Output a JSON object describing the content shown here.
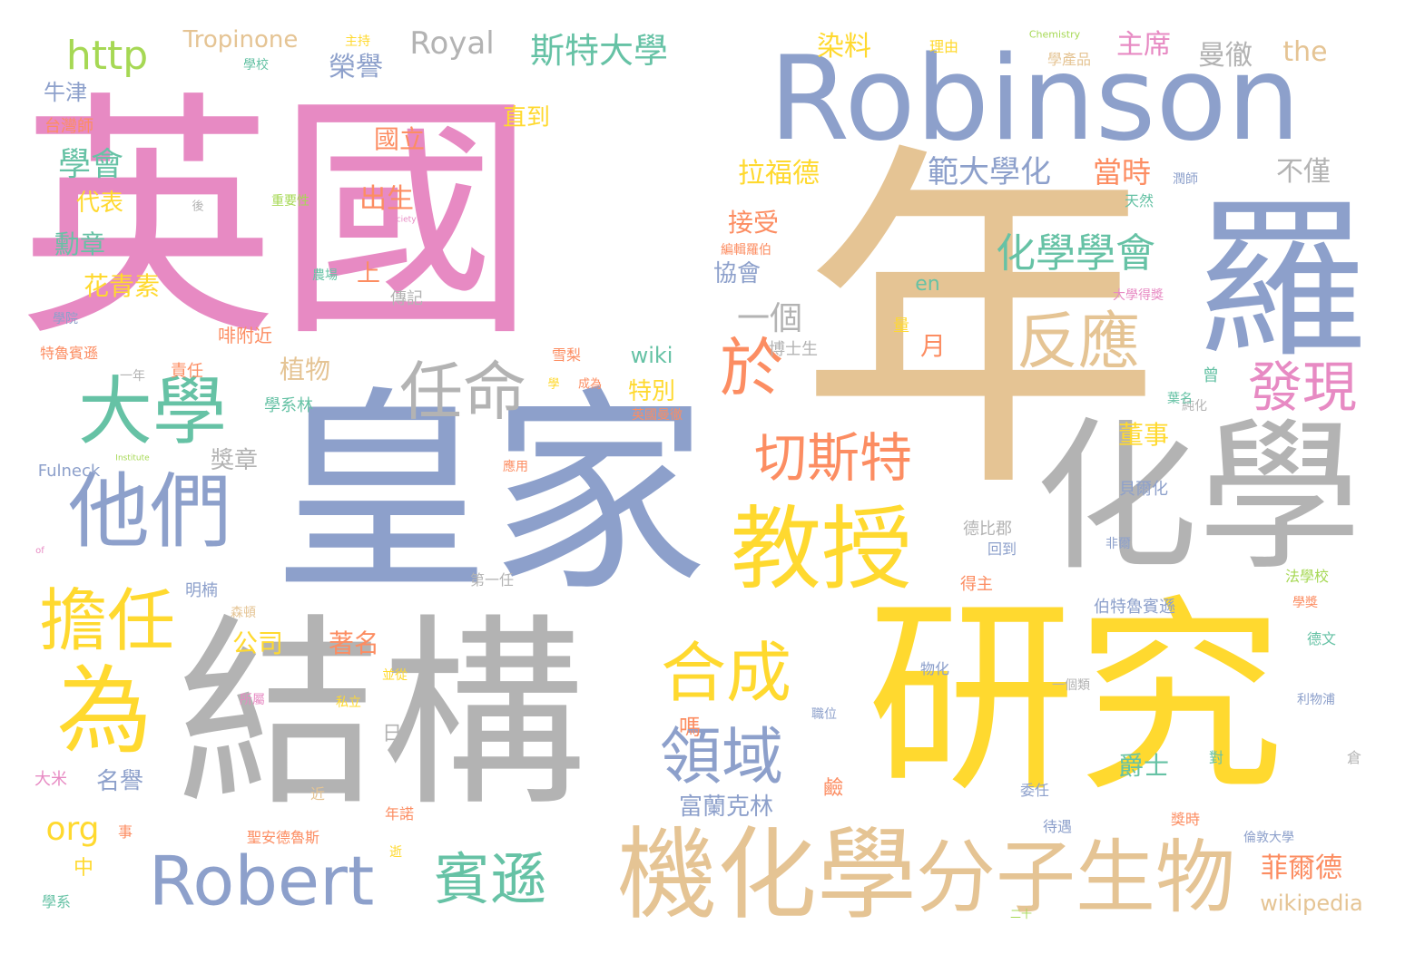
{
  "palette": {
    "pink": "#e78ac3",
    "blue": "#8da0cb",
    "tan": "#e5c494",
    "yellow": "#ffd92f",
    "gray": "#b3b3b3",
    "green": "#66c2a5",
    "orange": "#fc8d62",
    "lime": "#a6d854"
  },
  "words": [
    {
      "text": "英國",
      "color": "#e78ac3"
    },
    {
      "text": "年",
      "color": "#e5c494"
    },
    {
      "text": "皇家",
      "color": "#8da0cb"
    },
    {
      "text": "結構",
      "color": "#b3b3b3"
    },
    {
      "text": "研究",
      "color": "#ffd92f"
    },
    {
      "text": "Robinson",
      "color": "#8da0cb"
    },
    {
      "text": "化學",
      "color": "#b3b3b3"
    },
    {
      "text": "羅",
      "color": "#8da0cb"
    },
    {
      "text": "機化學",
      "color": "#e5c494"
    },
    {
      "text": "分子生物",
      "color": "#e5c494"
    },
    {
      "text": "他們",
      "color": "#8da0cb"
    },
    {
      "text": "大學",
      "color": "#66c2a5"
    },
    {
      "text": "教授",
      "color": "#ffd92f"
    },
    {
      "text": "為",
      "color": "#ffd92f"
    },
    {
      "text": "擔任",
      "color": "#ffd92f"
    },
    {
      "text": "Robert",
      "color": "#8da0cb"
    },
    {
      "text": "任命",
      "color": "#b3b3b3"
    },
    {
      "text": "切斯特",
      "color": "#fc8d62"
    },
    {
      "text": "合成",
      "color": "#ffd92f"
    },
    {
      "text": "領域",
      "color": "#8da0cb"
    },
    {
      "text": "於",
      "color": "#fc8d62"
    },
    {
      "text": "反應",
      "color": "#e5c494"
    },
    {
      "text": "發現",
      "color": "#e78ac3"
    },
    {
      "text": "賓遜",
      "color": "#66c2a5"
    },
    {
      "text": "化學學會",
      "color": "#66c2a5"
    },
    {
      "text": "http",
      "color": "#a6d854"
    },
    {
      "text": "Royal",
      "color": "#b3b3b3"
    },
    {
      "text": "斯特大學",
      "color": "#66c2a5"
    },
    {
      "text": "主席",
      "color": "#e78ac3"
    },
    {
      "text": "染料",
      "color": "#ffd92f"
    },
    {
      "text": "the",
      "color": "#e5c494"
    },
    {
      "text": "曼徹",
      "color": "#b3b3b3"
    },
    {
      "text": "Tropinone",
      "color": "#e5c494"
    },
    {
      "text": "牛津",
      "color": "#8da0cb"
    },
    {
      "text": "學會",
      "color": "#66c2a5"
    },
    {
      "text": "一個",
      "color": "#b3b3b3"
    },
    {
      "text": "org",
      "color": "#ffd92f"
    },
    {
      "text": "榮譽",
      "color": "#8da0cb"
    },
    {
      "text": "國立",
      "color": "#fc8d62"
    },
    {
      "text": "直到",
      "color": "#ffd92f"
    },
    {
      "text": "拉福德",
      "color": "#ffd92f"
    },
    {
      "text": "範大學化",
      "color": "#8da0cb"
    },
    {
      "text": "當時",
      "color": "#fc8d62"
    },
    {
      "text": "不僅",
      "color": "#b3b3b3"
    },
    {
      "text": "出生",
      "color": "#fc8d62"
    },
    {
      "text": "代表",
      "color": "#ffd92f"
    },
    {
      "text": "勳章",
      "color": "#66c2a5"
    },
    {
      "text": "花青素",
      "color": "#ffd92f"
    },
    {
      "text": "接受",
      "color": "#fc8d62"
    },
    {
      "text": "en",
      "color": "#66c2a5"
    },
    {
      "text": "協會",
      "color": "#8da0cb"
    },
    {
      "text": "植物",
      "color": "#e5c494"
    },
    {
      "text": "特別",
      "color": "#ffd92f"
    },
    {
      "text": "wiki",
      "color": "#66c2a5"
    },
    {
      "text": "獎章",
      "color": "#b3b3b3"
    },
    {
      "text": "董事",
      "color": "#ffd92f"
    },
    {
      "text": "名譽",
      "color": "#8da0cb"
    },
    {
      "text": "公司",
      "color": "#ffd92f"
    },
    {
      "text": "著名",
      "color": "#fc8d62"
    },
    {
      "text": "富蘭克林",
      "color": "#8da0cb"
    },
    {
      "text": "爵士",
      "color": "#66c2a5"
    },
    {
      "text": "菲爾德",
      "color": "#fc8d62"
    },
    {
      "text": "wikipedia",
      "color": "#e5c494"
    },
    {
      "text": "Fulneck",
      "color": "#8da0cb"
    },
    {
      "text": "台灣師",
      "color": "#fc8d62"
    },
    {
      "text": "學校",
      "color": "#66c2a5"
    },
    {
      "text": "主持",
      "color": "#ffd92f"
    },
    {
      "text": "理由",
      "color": "#ffd92f"
    },
    {
      "text": "學產品",
      "color": "#e5c494"
    },
    {
      "text": "Chemistry",
      "color": "#a6d854"
    },
    {
      "text": "上",
      "color": "#fc8d62"
    },
    {
      "text": "傳記",
      "color": "#b3b3b3"
    },
    {
      "text": "學院",
      "color": "#8da0cb"
    },
    {
      "text": "特魯賓遜",
      "color": "#fc8d62"
    },
    {
      "text": "責任",
      "color": "#fc8d62"
    },
    {
      "text": "啡附近",
      "color": "#fc8d62"
    },
    {
      "text": "學系林",
      "color": "#66c2a5"
    },
    {
      "text": "一年",
      "color": "#b3b3b3"
    },
    {
      "text": "月",
      "color": "#fc8d62"
    },
    {
      "text": "量",
      "color": "#ffd92f"
    },
    {
      "text": "博士生",
      "color": "#b3b3b3"
    },
    {
      "text": "雪梨",
      "color": "#fc8d62"
    },
    {
      "text": "成為",
      "color": "#fc8d62"
    },
    {
      "text": "英國曼徹",
      "color": "#fc8d62"
    },
    {
      "text": "應用",
      "color": "#fc8d62"
    },
    {
      "text": "第一任",
      "color": "#b3b3b3"
    },
    {
      "text": "明楠",
      "color": "#8da0cb"
    },
    {
      "text": "森頓",
      "color": "#e5c494"
    },
    {
      "text": "貝爾化",
      "color": "#8da0cb"
    },
    {
      "text": "德比郡",
      "color": "#b3b3b3"
    },
    {
      "text": "回到",
      "color": "#8da0cb"
    },
    {
      "text": "非爾",
      "color": "#8da0cb"
    },
    {
      "text": "得主",
      "color": "#fc8d62"
    },
    {
      "text": "伯特魯賓遜",
      "color": "#8da0cb"
    },
    {
      "text": "法學校",
      "color": "#a6d854"
    },
    {
      "text": "學獎",
      "color": "#fc8d62"
    },
    {
      "text": "德文",
      "color": "#66c2a5"
    },
    {
      "text": "物化",
      "color": "#8da0cb"
    },
    {
      "text": "一個類",
      "color": "#b3b3b3"
    },
    {
      "text": "職位",
      "color": "#8da0cb"
    },
    {
      "text": "利物浦",
      "color": "#8da0cb"
    },
    {
      "text": "嗎",
      "color": "#fc8d62"
    },
    {
      "text": "倉",
      "color": "#b3b3b3"
    },
    {
      "text": "對",
      "color": "#66c2a5"
    },
    {
      "text": "鹼",
      "color": "#fc8d62"
    },
    {
      "text": "委任",
      "color": "#8da0cb"
    },
    {
      "text": "待遇",
      "color": "#8da0cb"
    },
    {
      "text": "獎時",
      "color": "#fc8d62"
    },
    {
      "text": "倫敦大學",
      "color": "#8da0cb"
    },
    {
      "text": "大米",
      "color": "#e78ac3"
    },
    {
      "text": "近",
      "color": "#e5c494"
    },
    {
      "text": "年諾",
      "color": "#fc8d62"
    },
    {
      "text": "聖安德魯斯",
      "color": "#fc8d62"
    },
    {
      "text": "所屬",
      "color": "#e78ac3"
    },
    {
      "text": "私立",
      "color": "#ffd92f"
    },
    {
      "text": "並從",
      "color": "#ffd92f"
    },
    {
      "text": "日",
      "color": "#b3b3b3"
    },
    {
      "text": "中",
      "color": "#ffd92f"
    },
    {
      "text": "事",
      "color": "#fc8d62"
    },
    {
      "text": "學系",
      "color": "#66c2a5"
    },
    {
      "text": "逝",
      "color": "#ffd92f"
    },
    {
      "text": "重要性",
      "color": "#a6d854"
    },
    {
      "text": "天然",
      "color": "#66c2a5"
    },
    {
      "text": "編輯羅伯",
      "color": "#fc8d62"
    },
    {
      "text": "農場",
      "color": "#66c2a5"
    },
    {
      "text": "大學得獎",
      "color": "#e78ac3"
    },
    {
      "text": "純化",
      "color": "#b3b3b3"
    },
    {
      "text": "葉名",
      "color": "#66c2a5"
    },
    {
      "text": "曾",
      "color": "#66c2a5"
    },
    {
      "text": "潤師",
      "color": "#8da0cb"
    },
    {
      "text": "後",
      "color": "#b3b3b3"
    },
    {
      "text": "Society",
      "color": "#e78ac3"
    },
    {
      "text": "Institute",
      "color": "#a6d854"
    },
    {
      "text": "二十",
      "color": "#a6d854"
    },
    {
      "text": "of",
      "color": "#e78ac3"
    },
    {
      "text": "學",
      "color": "#ffd92f"
    }
  ]
}
